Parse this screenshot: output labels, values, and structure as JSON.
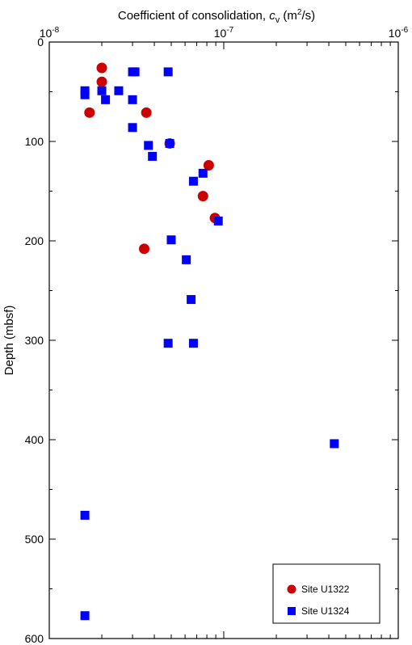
{
  "chart_data": {
    "type": "scatter",
    "title": "",
    "xlabel": {
      "prefix": "Coefficient of consolidation, ",
      "symbol": "c",
      "symbol_sub": "v",
      "unit_open": " (m",
      "unit_sup": "2",
      "unit_close": "/s)"
    },
    "ylabel": "Depth (mbsf)",
    "x_scale": "log",
    "xlim": [
      1e-08,
      1e-06
    ],
    "ylim": [
      0,
      600
    ],
    "y_inverted": true,
    "x_axis_position": "top",
    "x_tick_labels": [
      {
        "value": 1e-08,
        "base": "10",
        "exp": "-8"
      },
      {
        "value": 1e-07,
        "base": "10",
        "exp": "-7"
      },
      {
        "value": 1e-06,
        "base": "10",
        "exp": "-6"
      }
    ],
    "y_ticks": [
      0,
      100,
      200,
      300,
      400,
      500,
      600
    ],
    "grid": false,
    "legend_position": "bottom-right",
    "series": [
      {
        "name": "Site U1322",
        "marker": "circle",
        "color": "#cc0000",
        "points": [
          {
            "x": 2e-08,
            "y": 26
          },
          {
            "x": 2e-08,
            "y": 40
          },
          {
            "x": 1.7e-08,
            "y": 71
          },
          {
            "x": 3.6e-08,
            "y": 71
          },
          {
            "x": 4.9e-08,
            "y": 102
          },
          {
            "x": 8.2e-08,
            "y": 124
          },
          {
            "x": 7.6e-08,
            "y": 155
          },
          {
            "x": 8.9e-08,
            "y": 177
          },
          {
            "x": 3.5e-08,
            "y": 208
          }
        ]
      },
      {
        "name": "Site U1324",
        "marker": "square",
        "color": "#0000ff",
        "points": [
          {
            "x": 1.6e-08,
            "y": 49
          },
          {
            "x": 1.6e-08,
            "y": 53
          },
          {
            "x": 2e-08,
            "y": 49
          },
          {
            "x": 2.1e-08,
            "y": 58
          },
          {
            "x": 2.5e-08,
            "y": 49
          },
          {
            "x": 3e-08,
            "y": 30
          },
          {
            "x": 3.1e-08,
            "y": 30
          },
          {
            "x": 3e-08,
            "y": 58
          },
          {
            "x": 3e-08,
            "y": 86
          },
          {
            "x": 4.8e-08,
            "y": 30
          },
          {
            "x": 3.7e-08,
            "y": 104
          },
          {
            "x": 3.9e-08,
            "y": 115
          },
          {
            "x": 4.9e-08,
            "y": 102
          },
          {
            "x": 7.6e-08,
            "y": 132
          },
          {
            "x": 6.7e-08,
            "y": 140
          },
          {
            "x": 9.3e-08,
            "y": 180
          },
          {
            "x": 5e-08,
            "y": 199
          },
          {
            "x": 6.1e-08,
            "y": 219
          },
          {
            "x": 6.5e-08,
            "y": 259
          },
          {
            "x": 4.8e-08,
            "y": 303
          },
          {
            "x": 6.7e-08,
            "y": 303
          },
          {
            "x": 4.3e-07,
            "y": 404
          },
          {
            "x": 1.6e-08,
            "y": 476
          },
          {
            "x": 1.6e-08,
            "y": 577
          }
        ]
      }
    ]
  }
}
